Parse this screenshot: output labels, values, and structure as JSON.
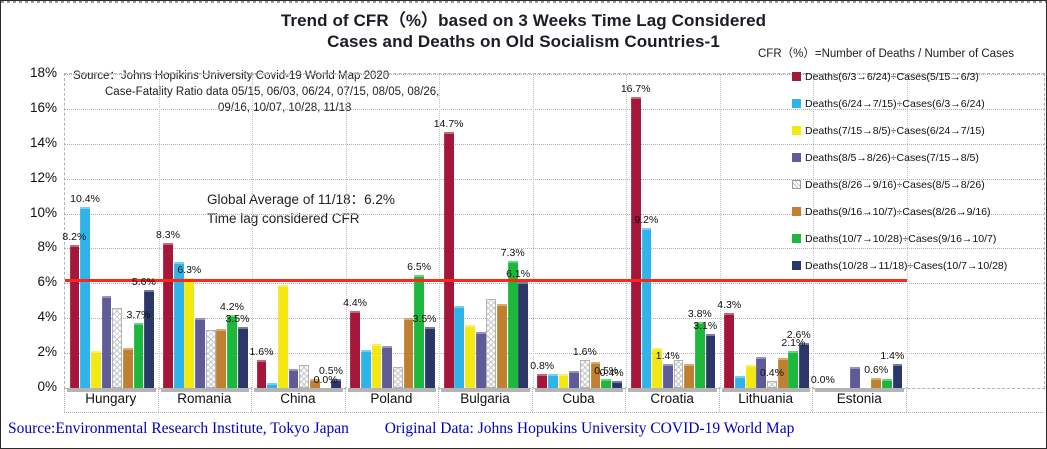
{
  "title": {
    "line1": "Trend of CFR（%）based on 3 Weeks Time Lag Considered",
    "line2": "Cases and Deaths on Old Socialism Countries-1"
  },
  "formula": "CFR（%）=Number of  Deaths / Number of Cases",
  "source_note": {
    "line1": "Source：Johns Hopikins University   Covid-19 World Map 2020",
    "line2": "Case-Fatality Ratio data   05/15, 06/03, 06/24,  07/15, 08/05, 08/26,",
    "line3": "09/16, 10/07, 10/28,  11/18"
  },
  "annotation": {
    "line1": "Global Average of 11/18：6.2%",
    "line2": "Time lag considered CFR"
  },
  "footer": {
    "source": "Source:Environmental Research Institute, Tokyo Japan",
    "original": "Original Data: Johns Hopukins University COVID-19 World Map"
  },
  "chart_data": {
    "type": "bar",
    "title": "Trend of CFR（%）based on 3 Weeks Time Lag Considered Cases and Deaths on Old Socialism Countries-1",
    "xlabel": "",
    "ylabel": "",
    "ylim": [
      0,
      18
    ],
    "ytick_labels": [
      "0%",
      "2%",
      "4%",
      "6%",
      "8%",
      "10%",
      "12%",
      "14%",
      "16%",
      "18%"
    ],
    "grid": true,
    "legend_position": "right-overlay",
    "average_line": {
      "label": "Global Average of 11/18：6.2%",
      "value": 6.2,
      "color": "#ff2619"
    },
    "categories": [
      "Hungary",
      "Romania",
      "China",
      "Poland",
      "Bulgaria",
      "Cuba",
      "Croatia",
      "Lithuania",
      "Estonia"
    ],
    "series": [
      {
        "name": "Deaths(6/3→6/24)÷Cases(5/15→6/3)",
        "color": "#a5173a",
        "values": [
          8.2,
          8.3,
          1.6,
          4.4,
          14.7,
          0.8,
          16.7,
          4.3,
          0.0
        ],
        "labels": [
          "8.2%",
          "8.3%",
          "1.6%",
          "4.4%",
          "14.7%",
          "0.8%",
          "16.7%",
          "4.3%",
          "0.0%"
        ]
      },
      {
        "name": "Deaths(6/24→7/15)÷Cases(6/3→6/24)",
        "color": "#2eb4e9",
        "values": [
          10.4,
          7.2,
          0.3,
          2.2,
          4.7,
          0.8,
          9.2,
          0.7,
          0.0
        ],
        "labels": [
          "10.4%",
          null,
          null,
          null,
          null,
          null,
          "9.2%",
          null,
          null
        ]
      },
      {
        "name": "Deaths(7/15→8/5)÷Cases(6/24→7/15)",
        "color": "#f4e813",
        "values": [
          2.1,
          6.3,
          5.9,
          2.5,
          3.6,
          0.8,
          2.3,
          1.3,
          0.0
        ],
        "labels": [
          null,
          "6.3%",
          null,
          null,
          null,
          null,
          null,
          null,
          null
        ]
      },
      {
        "name": "Deaths(8/5→8/26)÷Cases(7/15→8/5)",
        "color": "#5f5b99",
        "values": [
          5.3,
          4.0,
          1.1,
          2.4,
          3.2,
          1.0,
          1.4,
          1.8,
          1.2
        ],
        "labels": [
          null,
          null,
          null,
          null,
          null,
          null,
          "1.4%",
          null,
          null
        ]
      },
      {
        "name": "Deaths(8/26→9/16)÷Cases(8/5→8/26)",
        "color": "#ffffff",
        "pattern": "lattice",
        "values": [
          4.6,
          3.3,
          1.3,
          1.2,
          5.1,
          1.6,
          1.6,
          0.4,
          0.0
        ],
        "labels": [
          null,
          null,
          null,
          null,
          null,
          "1.6%",
          null,
          "0.4%",
          null
        ]
      },
      {
        "name": "Deaths(9/16→10/7)÷Cases(8/26→9/16)",
        "color": "#bf8030",
        "values": [
          2.3,
          3.4,
          0.5,
          4.0,
          4.8,
          1.5,
          1.4,
          1.7,
          0.6
        ],
        "labels": [
          null,
          null,
          null,
          null,
          null,
          null,
          null,
          null,
          "0.6%"
        ]
      },
      {
        "name": "Deaths(10/7→10/28)÷Cases(9/16→10/7)",
        "color": "#1cb83b",
        "values": [
          3.7,
          4.2,
          0.0,
          6.5,
          7.3,
          0.5,
          3.8,
          2.1,
          0.5
        ],
        "labels": [
          "3.7%",
          "4.2%",
          "0.0%",
          "6.5%",
          "7.3%",
          "0.5%",
          "3.8%",
          "2.1%",
          null
        ]
      },
      {
        "name": "Deaths(10/28→11/18)÷Cases(10/7→10/28)",
        "color": "#2b3768",
        "values": [
          5.6,
          3.5,
          0.5,
          3.5,
          6.1,
          0.4,
          3.1,
          2.6,
          1.4
        ],
        "labels": [
          "5.6%",
          "3.5%",
          "0.5%",
          "3.5%",
          "6.1%",
          "0.4%",
          "3.1%",
          "2.6%",
          "1.4%"
        ]
      }
    ]
  }
}
